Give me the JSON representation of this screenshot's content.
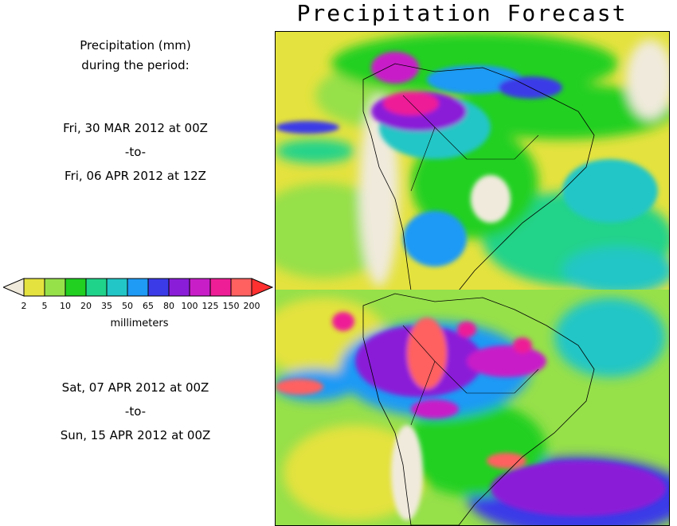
{
  "title": "Precipitation Forecast",
  "subtitle_line1": "Precipitation (mm)",
  "subtitle_line2": "during the period:",
  "period1": {
    "start": "Fri, 30 MAR 2012 at 00Z",
    "sep": "-to-",
    "end": "Fri, 06 APR 2012 at 12Z"
  },
  "period2": {
    "start": "Sat, 07 APR 2012 at 00Z",
    "sep": "-to-",
    "end": "Sun, 15 APR 2012 at 00Z"
  },
  "legend": {
    "unit": "millimeters",
    "labels": [
      "2",
      "5",
      "10",
      "20",
      "35",
      "50",
      "65",
      "80",
      "100",
      "125",
      "150",
      "200"
    ],
    "colors": [
      "#f0eadc",
      "#e4e23e",
      "#96e04a",
      "#21d021",
      "#20d38a",
      "#22c6c6",
      "#1f9af5",
      "#3b3be8",
      "#8a1ed8",
      "#c81ec8",
      "#ee1e96",
      "#ff6060",
      "#ff3030"
    ]
  }
}
